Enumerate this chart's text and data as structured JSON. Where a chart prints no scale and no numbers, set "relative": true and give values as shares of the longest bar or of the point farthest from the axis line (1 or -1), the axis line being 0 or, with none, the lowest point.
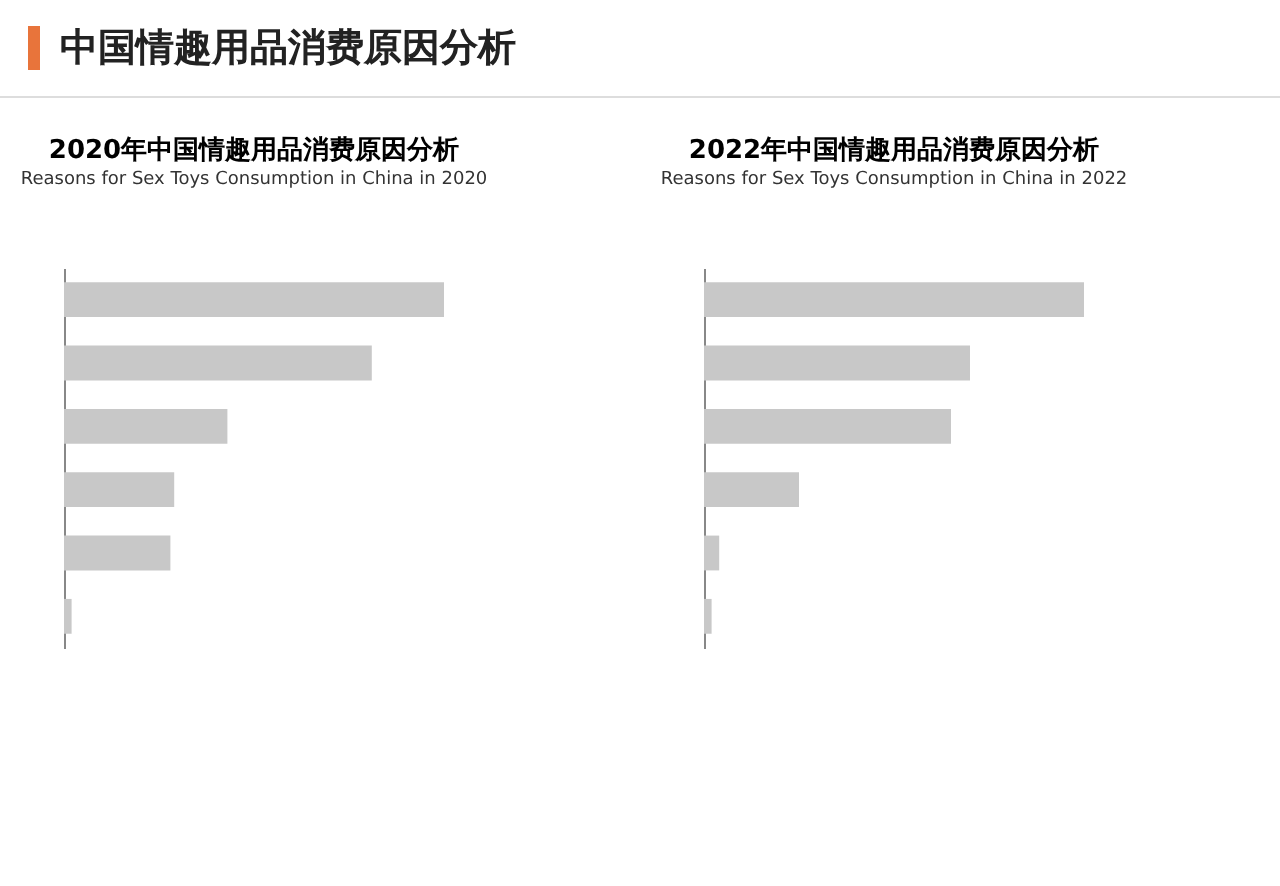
{
  "chart_data": [
    {
      "type": "bar",
      "orientation": "horizontal",
      "relative": true,
      "title": "2020年中国情趣用品消费原因分析",
      "subtitle": "Reasons for Sex Toys Consumption in China in 2020",
      "annotations": [
        "中国情趣用品消费原因分析"
      ],
      "categories": [
        null,
        null,
        null,
        null,
        null,
        null
      ],
      "values": [
        1,
        0.81,
        0.43,
        0.29,
        0.28,
        0.02
      ],
      "color": "#c8c8c8"
    },
    {
      "type": "bar",
      "orientation": "horizontal",
      "relative": true,
      "title": "2022年中国情趣用品消费原因分析",
      "subtitle": "Reasons for Sex Toys Consumption in China in 2022",
      "categories": [
        null,
        null,
        null,
        null,
        null,
        null
      ],
      "values": [
        1,
        0.7,
        0.65,
        0.25,
        0.04,
        0.02
      ],
      "color": "#c8c8c8"
    }
  ]
}
